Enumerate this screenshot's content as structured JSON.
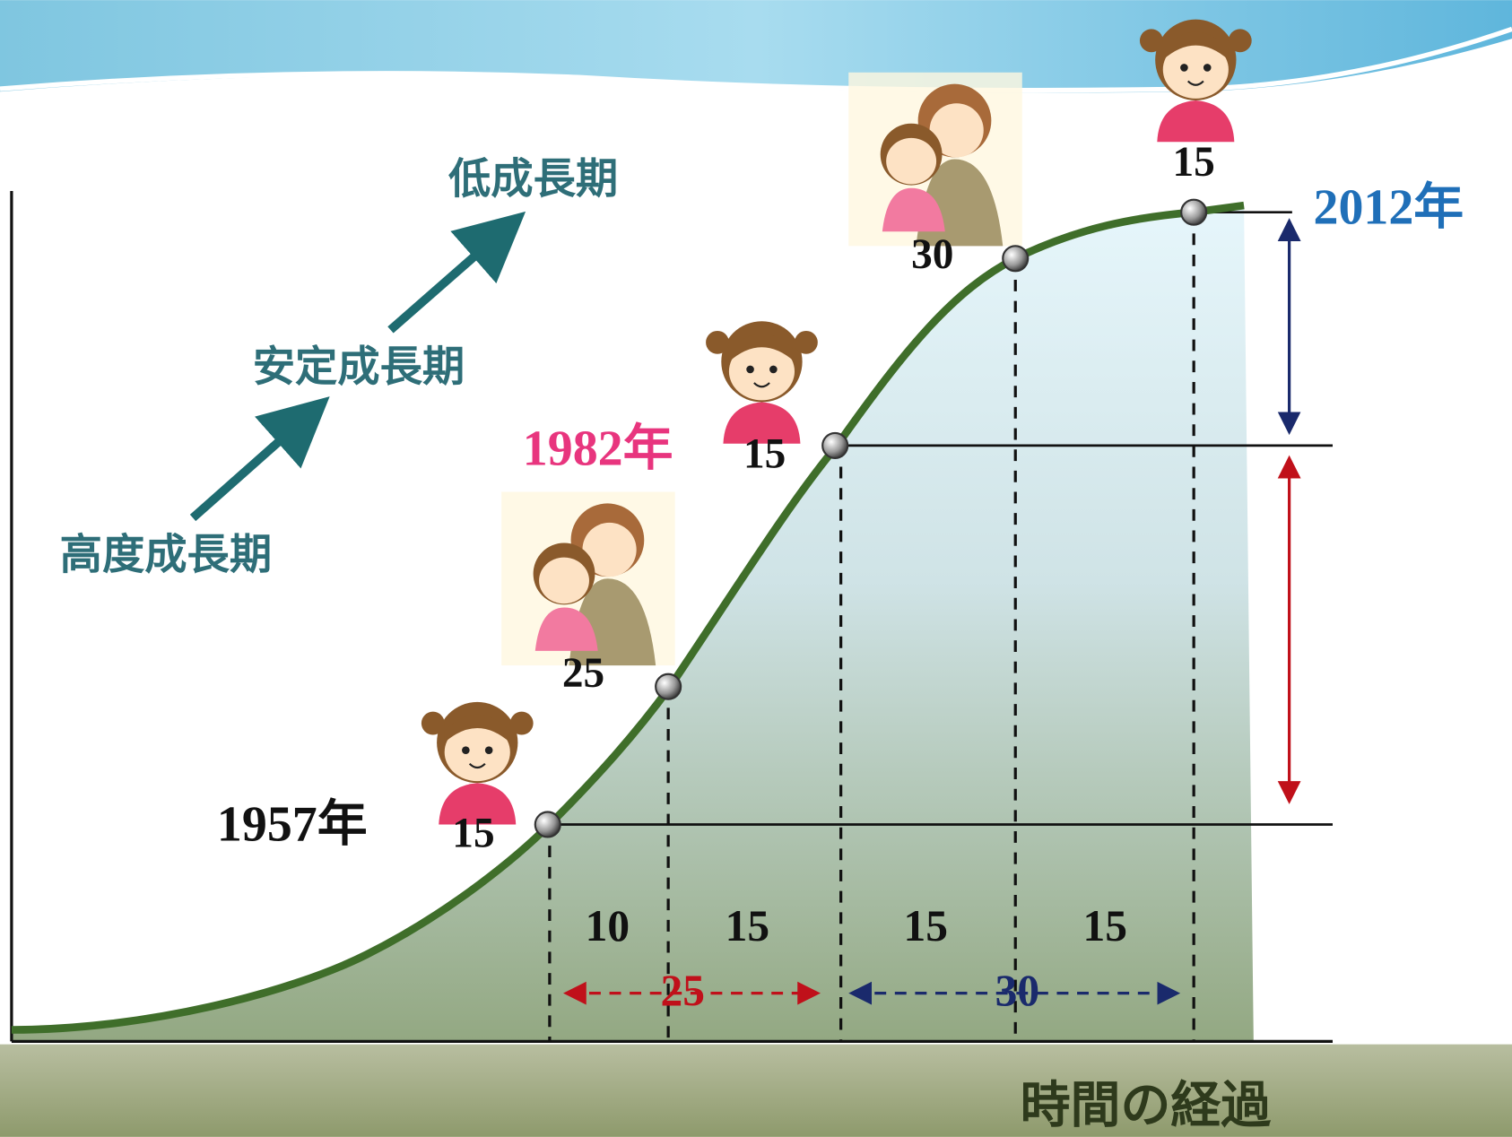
{
  "phases": [
    "高度成長期",
    "安定成長期",
    "低成長期"
  ],
  "years": [
    "1957年",
    "1982年",
    "2012年"
  ],
  "ages": [
    "15",
    "25",
    "15",
    "30",
    "15"
  ],
  "intervals": [
    "10",
    "15",
    "15",
    "15"
  ],
  "spans": [
    "25",
    "30"
  ],
  "x_axis_label": "時間の経過"
}
